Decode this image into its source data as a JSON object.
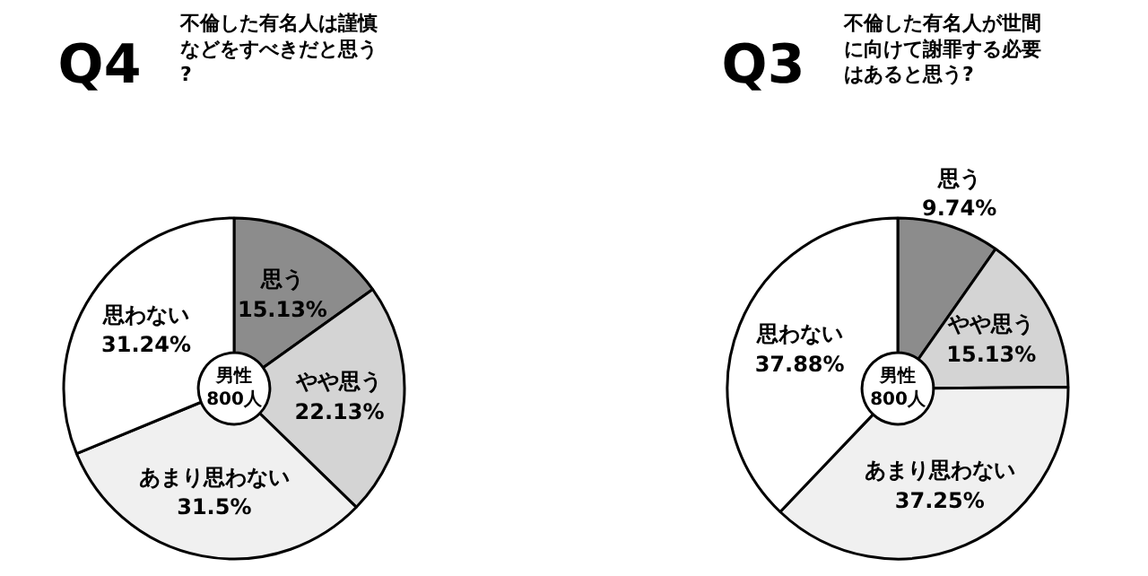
{
  "chart_data": [
    {
      "type": "donut",
      "title": "Q4",
      "subtitle": "不倫した有名人は謹慎などをすべきだと思う?",
      "categories": [
        "思う",
        "やや思う",
        "あまり思わない",
        "思わない"
      ],
      "values": [
        15.13,
        22.13,
        31.5,
        31.24
      ],
      "colors": [
        "#8c8c8c",
        "#d4d4d4",
        "#f0f0f0",
        "#ffffff"
      ],
      "value_labels": [
        "15.13%",
        "22.13%",
        "31.5%",
        "31.24%"
      ],
      "annotations": [
        "男性\n800人"
      ]
    },
    {
      "type": "donut",
      "title": "Q3",
      "subtitle": "不倫した有名人が世間に向けて謝罪する必要はあると思う?",
      "categories": [
        "思う",
        "やや思う",
        "あまり思わない",
        "思わない"
      ],
      "values": [
        9.74,
        15.13,
        37.25,
        37.88
      ],
      "colors": [
        "#8c8c8c",
        "#d4d4d4",
        "#f0f0f0",
        "#ffffff"
      ],
      "value_labels": [
        "9.74%",
        "15.13%",
        "37.25%",
        "37.88%"
      ],
      "annotations": [
        "男性\n800人"
      ]
    }
  ]
}
